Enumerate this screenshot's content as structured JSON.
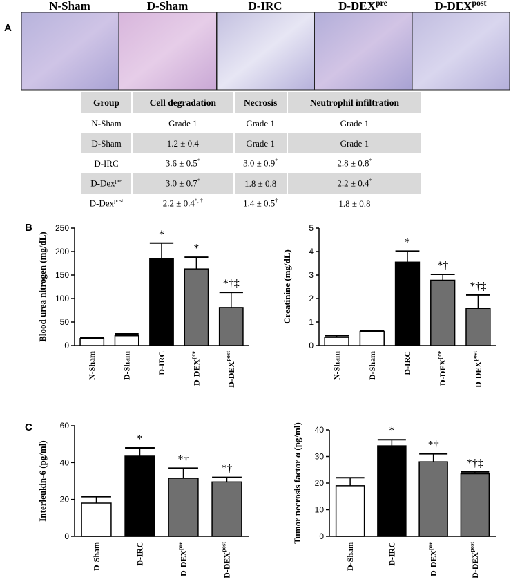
{
  "panel_labels": [
    "A",
    "B",
    "C"
  ],
  "images": [
    {
      "label": "N-Sham"
    },
    {
      "label": "D-Sham"
    },
    {
      "label": "D-IRC"
    },
    {
      "label": {
        "text": "D-DEX",
        "sup": "pre"
      }
    },
    {
      "label": {
        "text": "D-DEX",
        "sup": "post"
      }
    }
  ],
  "table": {
    "header": [
      "Group",
      "Cell degradation",
      "Necrosis",
      "Neutrophil infiltration"
    ],
    "rows": [
      [
        "N-Sham",
        "Grade 1",
        "Grade 1",
        "Grade 1"
      ],
      [
        "D-Sham",
        "1.2 ± 0.4",
        "Grade 1",
        "Grade 1"
      ],
      [
        "D-IRC",
        {
          "text": "3.6 ± 0.5",
          "sup": "*"
        },
        {
          "text": "3.0 ± 0.9",
          "sup": "*"
        },
        {
          "text": "2.8 ± 0.8",
          "sup": "*"
        }
      ],
      [
        {
          "text": "D-Dex",
          "sup": "pre"
        },
        {
          "text": "3.0 ± 0.7",
          "sup": "*"
        },
        "1.8 ± 0.8",
        {
          "text": "2.2 ± 0.4",
          "sup": "*"
        }
      ],
      [
        {
          "text": "D-Dex",
          "sup": "post"
        },
        {
          "text": "2.2 ± 0.4",
          "sup": "*, †"
        },
        {
          "text": "1.4 ± 0.5",
          "sup": "†"
        },
        "1.8 ± 0.8"
      ]
    ]
  },
  "chart_data": [
    {
      "type": "bar",
      "y_label": "Blood urea nitrogen (mg/dL)",
      "categories": [
        "N-Sham",
        "D-Sham",
        "D-IRC",
        {
          "text": "D-DEX",
          "sup": "pre"
        },
        {
          "text": "D-DEX",
          "sup": "post"
        }
      ],
      "values": [
        15,
        21,
        185,
        163,
        81
      ],
      "errors": [
        2,
        4,
        33,
        25,
        32
      ],
      "colors": [
        "#ffffff",
        "#ffffff",
        "#000000",
        "#6f6f6f",
        "#6f6f6f"
      ],
      "annotations": [
        null,
        null,
        "*",
        "*",
        "*†‡"
      ],
      "ylim": [
        0,
        250
      ],
      "yticks": [
        0,
        50,
        100,
        150,
        200,
        250
      ]
    },
    {
      "type": "bar",
      "y_label": "Creatinine (mg/dL)",
      "categories": [
        "N-Sham",
        "D-Sham",
        "D-IRC",
        {
          "text": "D-DEX",
          "sup": "pre"
        },
        {
          "text": "D-DEX",
          "sup": "post"
        }
      ],
      "values": [
        0.35,
        0.6,
        3.55,
        2.78,
        1.58
      ],
      "errors": [
        0.07,
        0.03,
        0.47,
        0.25,
        0.57
      ],
      "colors": [
        "#ffffff",
        "#ffffff",
        "#000000",
        "#6f6f6f",
        "#6f6f6f"
      ],
      "annotations": [
        null,
        null,
        "*",
        "*†",
        "*†‡"
      ],
      "ylim": [
        0,
        5
      ],
      "yticks": [
        0,
        1,
        2,
        3,
        4,
        5
      ]
    },
    {
      "type": "bar",
      "y_label": "Interleukin-6  (pg/ml)",
      "categories": [
        "D-Sham",
        "D-IRC",
        {
          "text": "D-DEX",
          "sup": "pre"
        },
        {
          "text": "D-DEX",
          "sup": "post"
        }
      ],
      "values": [
        18,
        43.5,
        31.5,
        29.5
      ],
      "errors": [
        3.5,
        4.5,
        5.5,
        2.5
      ],
      "colors": [
        "#ffffff",
        "#000000",
        "#6f6f6f",
        "#6f6f6f"
      ],
      "annotations": [
        null,
        "*",
        "*†",
        "*†"
      ],
      "ylim": [
        0,
        60
      ],
      "yticks": [
        0,
        20,
        40,
        60
      ]
    },
    {
      "type": "bar",
      "y_label": "Tumor necrosis factor α (pg/ml)",
      "categories": [
        "D-Sham",
        "D-IRC",
        {
          "text": "D-DEX",
          "sup": "pre"
        },
        {
          "text": "D-DEX",
          "sup": "post"
        }
      ],
      "values": [
        19,
        34,
        28,
        23.5
      ],
      "errors": [
        3,
        2.3,
        3,
        0.7
      ],
      "colors": [
        "#ffffff",
        "#000000",
        "#6f6f6f",
        "#6f6f6f"
      ],
      "annotations": [
        null,
        "*",
        "*†",
        "*†‡"
      ],
      "ylim": [
        0,
        40
      ],
      "yticks": [
        0,
        10,
        20,
        30,
        40
      ]
    }
  ]
}
